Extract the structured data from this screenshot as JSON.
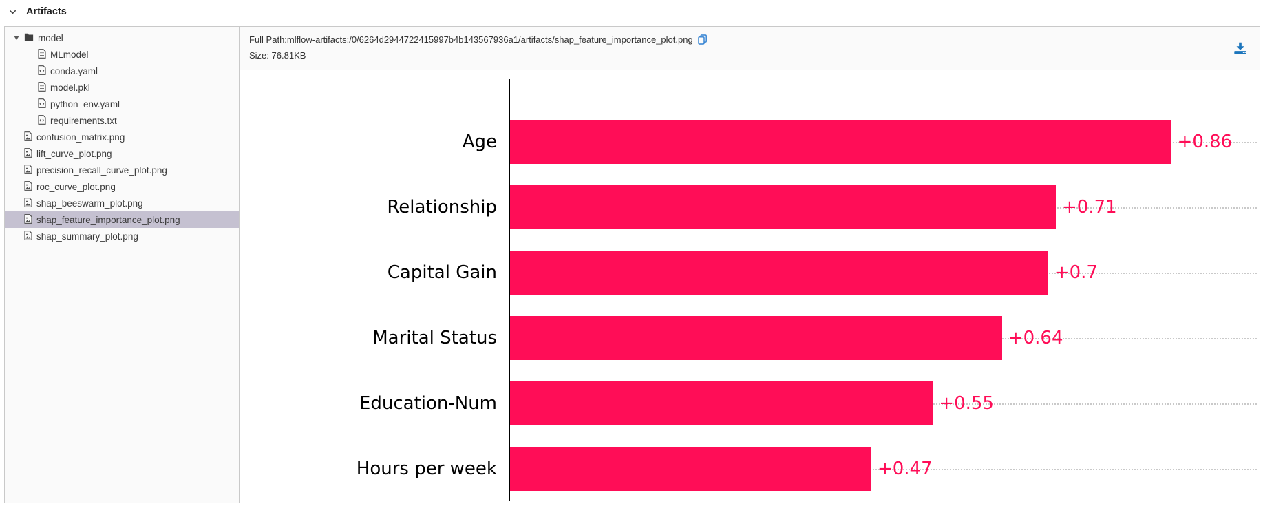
{
  "section": {
    "title": "Artifacts"
  },
  "sidebar": {
    "items": [
      {
        "label": "model",
        "type": "folder",
        "level": 0,
        "expanded": true
      },
      {
        "label": "MLmodel",
        "type": "doc",
        "level": 1
      },
      {
        "label": "conda.yaml",
        "type": "code",
        "level": 1
      },
      {
        "label": "model.pkl",
        "type": "doc",
        "level": 1
      },
      {
        "label": "python_env.yaml",
        "type": "code",
        "level": 1
      },
      {
        "label": "requirements.txt",
        "type": "code",
        "level": 1
      },
      {
        "label": "confusion_matrix.png",
        "type": "image",
        "level": 0
      },
      {
        "label": "lift_curve_plot.png",
        "type": "image",
        "level": 0
      },
      {
        "label": "precision_recall_curve_plot.png",
        "type": "image",
        "level": 0
      },
      {
        "label": "roc_curve_plot.png",
        "type": "image",
        "level": 0
      },
      {
        "label": "shap_beeswarm_plot.png",
        "type": "image",
        "level": 0
      },
      {
        "label": "shap_feature_importance_plot.png",
        "type": "image",
        "level": 0,
        "selected": true
      },
      {
        "label": "shap_summary_plot.png",
        "type": "image",
        "level": 0
      }
    ]
  },
  "file_info": {
    "full_path_label": "Full Path:",
    "full_path": "mlflow-artifacts:/0/6264d2944722415997b4b143567936a1/artifacts/shap_feature_importance_plot.png",
    "size_label": "Size:",
    "size_value": "76.81KB"
  },
  "icons": {
    "header_chevron": "chevron-down-icon",
    "copy": "copy-icon",
    "download": "download-icon",
    "folder": "folder-icon",
    "doc": "file-document-icon",
    "code": "file-code-icon",
    "image": "file-image-icon"
  },
  "colors": {
    "bar": "#ff0d57",
    "value_label": "#ff0d57",
    "axis": "#000000",
    "gridline": "#c9c9c9",
    "selected_row_bg": "#c5c1d1",
    "sidebar_bg": "#fafafa",
    "panel_border": "#c9c9c9",
    "blue_icon": "#1c75bc"
  },
  "chart_data": {
    "type": "bar",
    "orientation": "horizontal",
    "title": "",
    "xlabel": "",
    "ylabel": "",
    "categories": [
      "Age",
      "Relationship",
      "Capital Gain",
      "Marital Status",
      "Education-Num",
      "Hours per week"
    ],
    "values": [
      0.86,
      0.71,
      0.7,
      0.64,
      0.55,
      0.47
    ],
    "value_labels": [
      "+0.86",
      "+0.71",
      "+0.7",
      "+0.64",
      "+0.55",
      "+0.47"
    ],
    "xlim": [
      0,
      0.975
    ],
    "bar_color": "#ff0d57",
    "grid": "horizontal dotted line per category, behind bars",
    "legend": "none"
  }
}
